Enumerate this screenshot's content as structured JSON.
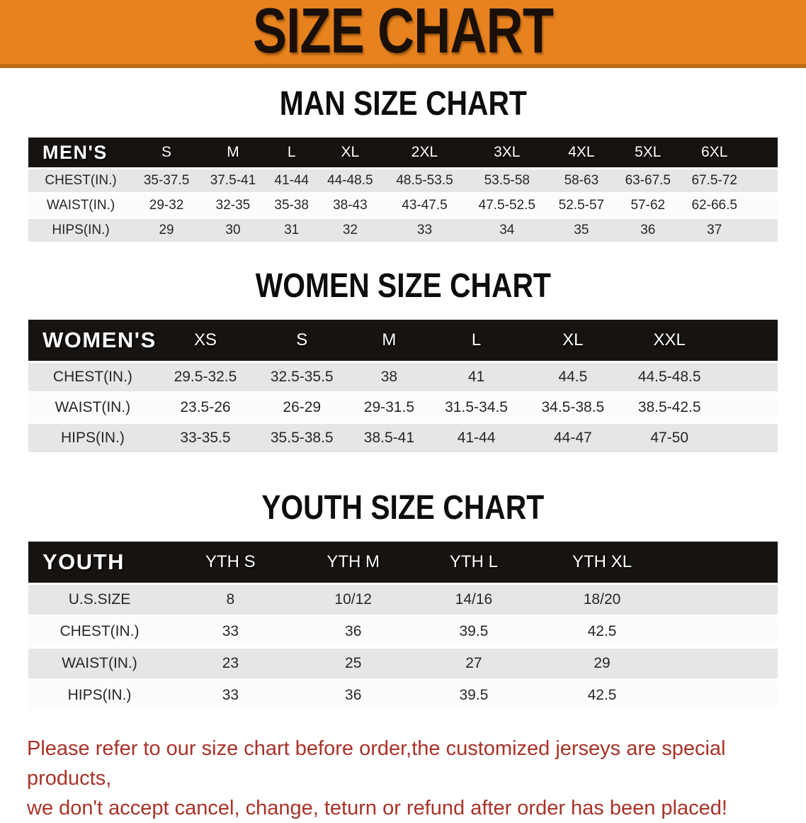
{
  "banner": {
    "title": "SIZE CHART",
    "bg_color": "#E8821E",
    "edge_color": "#BA6C10",
    "text_color": "#1A1008"
  },
  "sections": [
    {
      "heading": "MAN SIZE CHART",
      "table": {
        "group_label": "MEN'S",
        "columns": [
          "S",
          "M",
          "L",
          "XL",
          "2XL",
          "3XL",
          "4XL",
          "5XL",
          "6XL"
        ],
        "rows": [
          {
            "label": "CHEST(IN.)",
            "values": [
              "35-37.5",
              "37.5-41",
              "41-44",
              "44-48.5",
              "48.5-53.5",
              "53.5-58",
              "58-63",
              "63-67.5",
              "67.5-72"
            ]
          },
          {
            "label": "WAIST(IN.)",
            "values": [
              "29-32",
              "32-35",
              "35-38",
              "38-43",
              "43-47.5",
              "47.5-52.5",
              "52.5-57",
              "57-62",
              "62-66.5"
            ]
          },
          {
            "label": "HIPS(IN.)",
            "values": [
              "29",
              "30",
              "31",
              "32",
              "33",
              "34",
              "35",
              "36",
              "37"
            ]
          }
        ]
      }
    },
    {
      "heading": "WOMEN SIZE CHART",
      "table": {
        "group_label": "WOMEN'S",
        "columns": [
          "XS",
          "S",
          "M",
          "L",
          "XL",
          "XXL"
        ],
        "rows": [
          {
            "label": "CHEST(IN.)",
            "values": [
              "29.5-32.5",
              "32.5-35.5",
              "38",
              "41",
              "44.5",
              "44.5-48.5"
            ]
          },
          {
            "label": "WAIST(IN.)",
            "values": [
              "23.5-26",
              "26-29",
              "29-31.5",
              "31.5-34.5",
              "34.5-38.5",
              "38.5-42.5"
            ]
          },
          {
            "label": "HIPS(IN.)",
            "values": [
              "33-35.5",
              "35.5-38.5",
              "38.5-41",
              "41-44",
              "44-47",
              "47-50"
            ]
          }
        ]
      }
    },
    {
      "heading": "YOUTH SIZE CHART",
      "table": {
        "group_label": "YOUTH",
        "columns": [
          "YTH S",
          "YTH M",
          "YTH L",
          "YTH XL"
        ],
        "rows": [
          {
            "label": "U.S.SIZE",
            "values": [
              "8",
              "10/12",
              "14/16",
              "18/20"
            ]
          },
          {
            "label": "CHEST(IN.)",
            "values": [
              "33",
              "36",
              "39.5",
              "42.5"
            ]
          },
          {
            "label": "WAIST(IN.)",
            "values": [
              "23",
              "25",
              "27",
              "29"
            ]
          },
          {
            "label": "HIPS(IN.)",
            "values": [
              "33",
              "36",
              "39.5",
              "42.5"
            ]
          }
        ]
      }
    }
  ],
  "disclaimer": {
    "lines": [
      "Please refer to our size chart before order,the customized jerseys are special products,",
      "we don't accept cancel, change, teturn or refund after order has been placed!"
    ],
    "color": "#A93228"
  },
  "row_stripe_color": "#E6E6E6",
  "header_band_color": "#171310"
}
